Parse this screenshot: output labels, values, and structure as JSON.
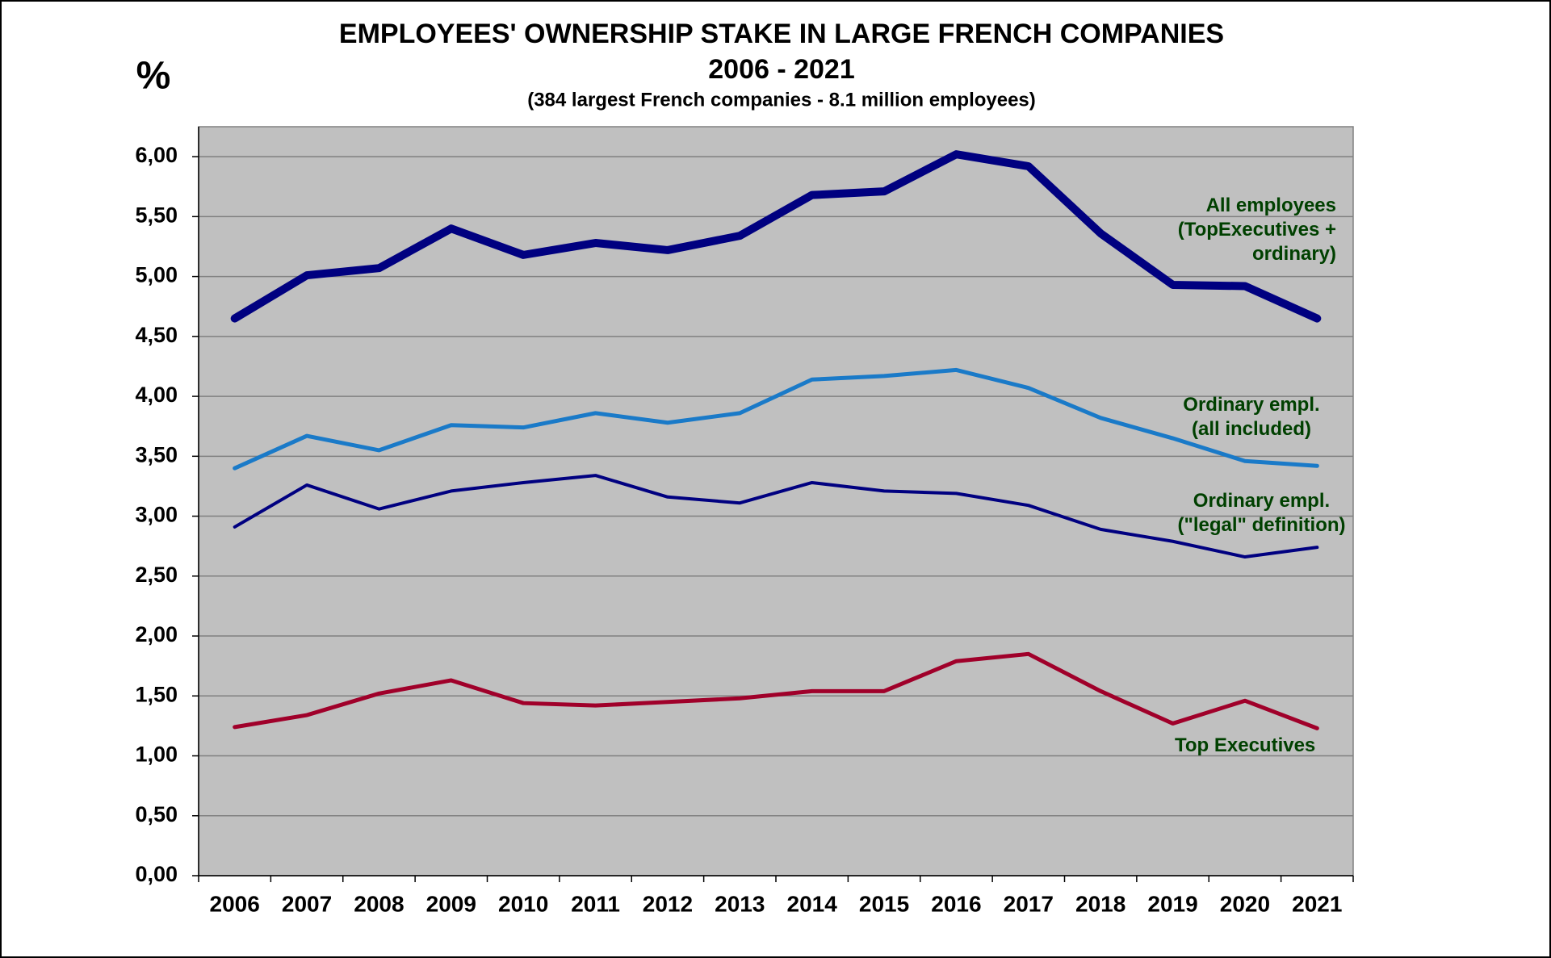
{
  "chart_data": {
    "type": "line",
    "title": "EMPLOYEES' OWNERSHIP STAKE IN  LARGE FRENCH COMPANIES",
    "subtitle": "2006 - 2021",
    "note": "(384  largest  French companies - 8.1 million employees)",
    "y_label": "%",
    "categories": [
      "2006",
      "2007",
      "2008",
      "2009",
      "2010",
      "2011",
      "2012",
      "2013",
      "2014",
      "2015",
      "2016",
      "2017",
      "2018",
      "2019",
      "2020",
      "2021"
    ],
    "ylim": [
      0,
      6.25
    ],
    "yticks": [
      {
        "value": 0,
        "label": "0,00"
      },
      {
        "value": 0.5,
        "label": "0,50"
      },
      {
        "value": 1,
        "label": "1,00"
      },
      {
        "value": 1.5,
        "label": "1,50"
      },
      {
        "value": 2,
        "label": "2,00"
      },
      {
        "value": 2.5,
        "label": "2,50"
      },
      {
        "value": 3,
        "label": "3,00"
      },
      {
        "value": 3.5,
        "label": "3,50"
      },
      {
        "value": 4,
        "label": "4,00"
      },
      {
        "value": 4.5,
        "label": "4,50"
      },
      {
        "value": 5,
        "label": "5,00"
      },
      {
        "value": 5.5,
        "label": "5,50"
      },
      {
        "value": 6,
        "label": "6,00"
      }
    ],
    "grid": true,
    "series": [
      {
        "name": "All employees (TopExecutives + ordinary)",
        "color": "#000080",
        "values": [
          4.65,
          5.01,
          5.07,
          5.4,
          5.18,
          5.28,
          5.22,
          5.34,
          5.68,
          5.71,
          6.02,
          5.92,
          5.36,
          4.93,
          4.92,
          4.65
        ]
      },
      {
        "name": "Ordinary empl. (all included)",
        "color": "#1a7ac8",
        "values": [
          3.4,
          3.67,
          3.55,
          3.76,
          3.74,
          3.86,
          3.78,
          3.86,
          4.14,
          4.17,
          4.22,
          4.07,
          3.82,
          3.65,
          3.46,
          3.42
        ]
      },
      {
        "name": "Ordinary empl. (\"legal\" definition)",
        "color": "#000080",
        "values": [
          2.91,
          3.26,
          3.06,
          3.21,
          3.28,
          3.34,
          3.16,
          3.11,
          3.28,
          3.21,
          3.19,
          3.09,
          2.89,
          2.79,
          2.66,
          2.74
        ]
      },
      {
        "name": "Top Executives",
        "color": "#a0002a",
        "values": [
          1.24,
          1.34,
          1.52,
          1.63,
          1.44,
          1.42,
          1.45,
          1.48,
          1.54,
          1.54,
          1.79,
          1.85,
          1.54,
          1.27,
          1.46,
          1.23
        ]
      }
    ]
  }
}
